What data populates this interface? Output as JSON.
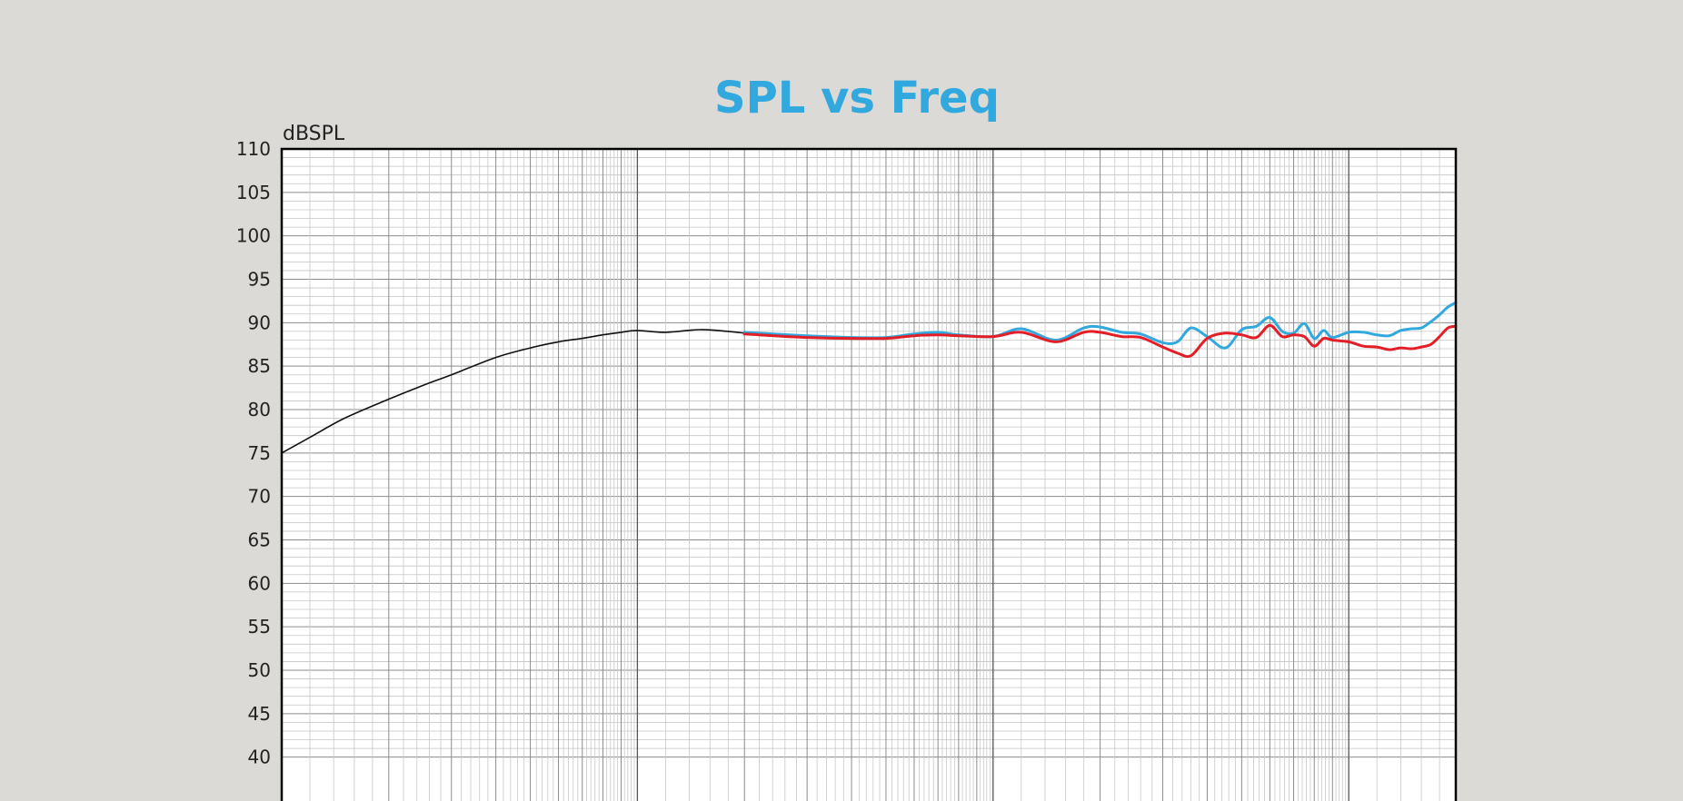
{
  "chart_data": {
    "type": "line",
    "title": "SPL vs Freq",
    "xlabel": "",
    "ylabel": "dBSPL",
    "x_scale": "log",
    "xlim": [
      10,
      20000
    ],
    "ylim": [
      40,
      110
    ],
    "y_ticks": [
      "110",
      "105",
      "100",
      "95",
      "90",
      "85",
      "80",
      "75",
      "70",
      "65",
      "60",
      "55",
      "50",
      "45",
      "40"
    ],
    "grid": true,
    "series": [
      {
        "color": "#111111",
        "x": [
          10,
          12,
          15,
          20,
          25,
          30,
          40,
          50,
          60,
          70,
          80,
          90,
          100,
          120,
          150,
          180,
          200
        ],
        "y": [
          75.0,
          76.8,
          79.0,
          81.2,
          82.8,
          84.0,
          86.0,
          87.1,
          87.8,
          88.2,
          88.6,
          88.9,
          89.1,
          88.9,
          89.2,
          89.0,
          88.8
        ]
      },
      {
        "color": "#31a9df",
        "x": [
          200,
          300,
          400,
          500,
          600,
          700,
          800,
          1000,
          1200,
          1500,
          1800,
          2000,
          2300,
          2600,
          3000,
          3300,
          3600,
          4000,
          4500,
          5000,
          5500,
          6000,
          6500,
          7000,
          7500,
          8000,
          8500,
          9000,
          10000,
          11000,
          12000,
          13000,
          14000,
          15000,
          16000,
          17000,
          18000,
          19000,
          20000
        ],
        "y": [
          88.9,
          88.5,
          88.3,
          88.3,
          88.7,
          88.9,
          88.6,
          88.4,
          89.3,
          88.0,
          89.4,
          89.5,
          88.9,
          88.7,
          87.7,
          87.8,
          89.4,
          88.4,
          87.1,
          89.2,
          89.6,
          90.6,
          89.0,
          88.8,
          89.9,
          88.2,
          89.1,
          88.3,
          88.9,
          88.9,
          88.6,
          88.5,
          89.1,
          89.3,
          89.4,
          90.1,
          90.9,
          91.8,
          92.3
        ]
      },
      {
        "color": "#e41e26",
        "x": [
          200,
          300,
          400,
          500,
          600,
          700,
          800,
          1000,
          1200,
          1500,
          1800,
          2000,
          2300,
          2600,
          3000,
          3300,
          3600,
          4000,
          4500,
          5000,
          5500,
          6000,
          6500,
          7000,
          7500,
          8000,
          8500,
          9000,
          10000,
          11000,
          12000,
          13000,
          14000,
          15000,
          16000,
          17000,
          18000,
          19000,
          20000
        ],
        "y": [
          88.7,
          88.3,
          88.2,
          88.2,
          88.5,
          88.6,
          88.5,
          88.4,
          88.9,
          87.8,
          88.9,
          88.9,
          88.4,
          88.3,
          87.2,
          86.5,
          86.2,
          88.2,
          88.8,
          88.6,
          88.3,
          89.7,
          88.4,
          88.6,
          88.4,
          87.3,
          88.2,
          88.0,
          87.8,
          87.3,
          87.2,
          86.9,
          87.1,
          87.0,
          87.2,
          87.5,
          88.4,
          89.4,
          89.6
        ]
      }
    ]
  }
}
